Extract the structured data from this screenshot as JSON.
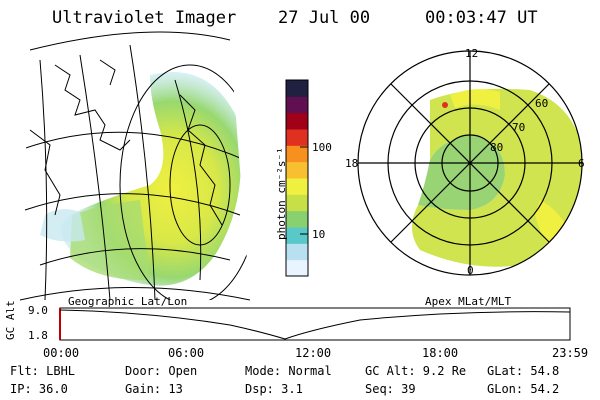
{
  "header": {
    "title": "Ultraviolet Imager",
    "date": "27 Jul 00",
    "time": "00:03:47 UT"
  },
  "colorbar": {
    "unit_label": "photon cm⁻²s⁻¹",
    "ticks": [
      "100",
      "10"
    ],
    "colors": [
      "#e8f4ff",
      "#b8e0f0",
      "#58c8c8",
      "#88d070",
      "#c8e048",
      "#f0f040",
      "#f8c030",
      "#f89020",
      "#e03020",
      "#a00018",
      "#601050",
      "#202040"
    ]
  },
  "geo_panel": {
    "label": "Geographic Lat/Lon"
  },
  "polar_panel": {
    "label": "Apex MLat/MLT",
    "mlt_labels": {
      "top": "12",
      "left": "18",
      "right": "6",
      "bottom": "0"
    },
    "mlat_labels": [
      "60",
      "70",
      "80"
    ]
  },
  "altitude_plot": {
    "ylabel": "GC Alt",
    "yticks": [
      "9.0",
      "1.8"
    ],
    "xticks": [
      "00:00",
      "06:00",
      "12:00",
      "18:00",
      "23:59"
    ]
  },
  "footer": {
    "flt": "Flt: LBHL",
    "door": "Door: Open",
    "mode": "Mode: Normal",
    "gc_alt": "GC Alt: 9.2 Re",
    "glat": "GLat: 54.8",
    "ip": "IP: 36.0",
    "gain": "Gain: 13",
    "dsp": "Dsp:    3.1",
    "seq": "Seq: 39",
    "glon": "GLon:  54.2"
  }
}
